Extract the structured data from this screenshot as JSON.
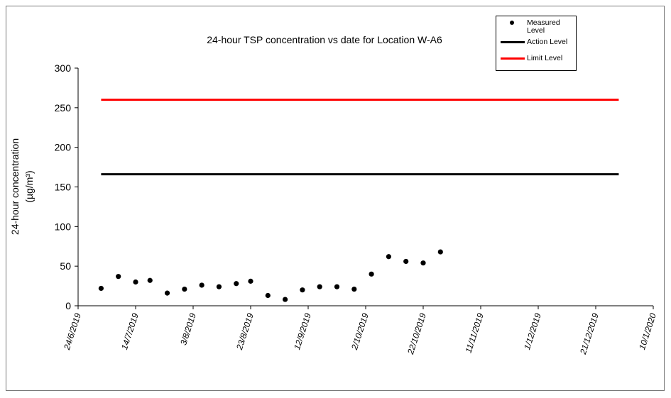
{
  "chart_data": {
    "type": "scatter",
    "title": "24-hour TSP concentration vs date for Location W-A6",
    "y_label": "24-hour concentration",
    "y_label_unit": "(µg/m³)",
    "xlim": [
      "2019-06-24",
      "2020-01-10"
    ],
    "xticks": [
      {
        "value": "2019-06-24",
        "label": "24/6/2019"
      },
      {
        "value": "2019-07-14",
        "label": "14/7/2019"
      },
      {
        "value": "2019-08-03",
        "label": "3/8/2019"
      },
      {
        "value": "2019-08-23",
        "label": "23/8/2019"
      },
      {
        "value": "2019-09-12",
        "label": "12/9/2019"
      },
      {
        "value": "2019-10-02",
        "label": "2/10/2019"
      },
      {
        "value": "2019-10-22",
        "label": "22/10/2019"
      },
      {
        "value": "2019-11-11",
        "label": "11/11/2019"
      },
      {
        "value": "2019-12-01",
        "label": "1/12/2019"
      },
      {
        "value": "2019-12-21",
        "label": "21/12/2019"
      },
      {
        "value": "2020-01-10",
        "label": "10/1/2020"
      }
    ],
    "ylim": [
      0,
      300
    ],
    "yticks": [
      0,
      50,
      100,
      150,
      200,
      250,
      300
    ],
    "series": [
      {
        "name": "Measured Level",
        "color": "#000000",
        "style": "markers",
        "x": [
          "2019-07-02",
          "2019-07-08",
          "2019-07-14",
          "2019-07-19",
          "2019-07-25",
          "2019-07-31",
          "2019-08-06",
          "2019-08-12",
          "2019-08-18",
          "2019-08-23",
          "2019-08-29",
          "2019-09-04",
          "2019-09-10",
          "2019-09-16",
          "2019-09-22",
          "2019-09-28",
          "2019-10-04",
          "2019-10-10",
          "2019-10-16",
          "2019-10-22",
          "2019-10-28"
        ],
        "values": [
          22,
          37,
          30,
          32,
          16,
          21,
          26,
          24,
          28,
          31,
          13,
          8,
          20,
          24,
          24,
          21,
          40,
          62,
          56,
          54,
          68
        ]
      },
      {
        "name": "Action Level",
        "color": "#000000",
        "style": "line",
        "x": [
          "2019-07-02",
          "2019-12-29"
        ],
        "values": [
          166,
          166
        ]
      },
      {
        "name": "Limit Level",
        "color": "#ff0000",
        "style": "line",
        "x": [
          "2019-07-02",
          "2019-12-29"
        ],
        "values": [
          260,
          260
        ]
      }
    ]
  }
}
